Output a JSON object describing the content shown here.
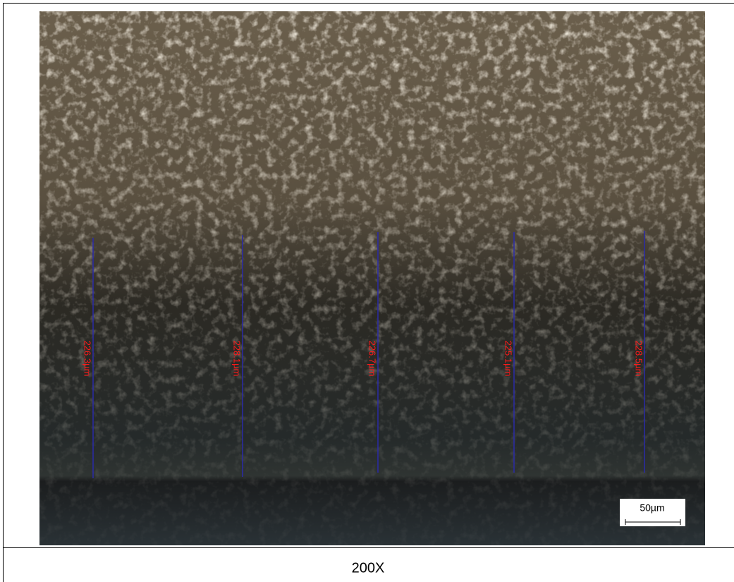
{
  "image": {
    "measurements": [
      "226.3µm",
      "228.1µm",
      "226.7µm",
      "225.1µm",
      "228.5µm"
    ],
    "scale_bar": "50µm"
  },
  "caption": "200X"
}
